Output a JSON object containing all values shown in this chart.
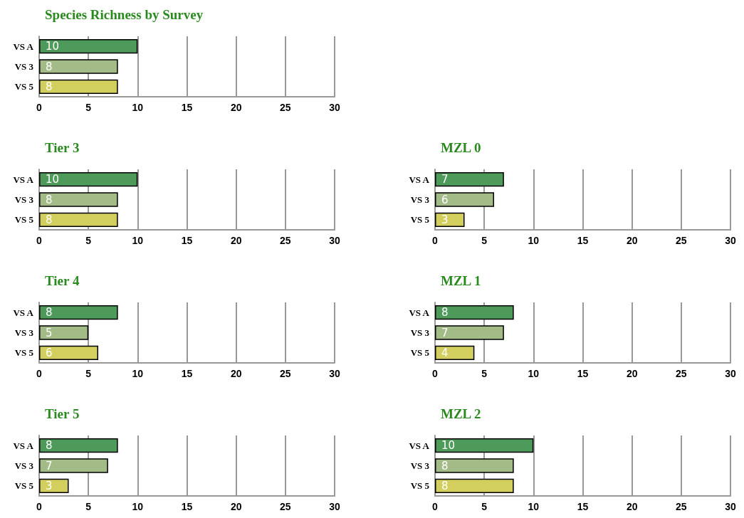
{
  "chart_data": [
    {
      "type": "bar",
      "orientation": "horizontal",
      "title": "Species Richness by Survey",
      "categories": [
        "VS A",
        "VS 3",
        "VS 5"
      ],
      "values": [
        10,
        8,
        8
      ],
      "colors": [
        "#4e9a5a",
        "#a3bb86",
        "#d2cf5e"
      ],
      "xlim": [
        0,
        30
      ],
      "xticks": [
        0,
        5,
        10,
        15,
        20,
        25,
        30
      ],
      "grid": "x",
      "data_labels": true
    },
    {
      "type": "bar",
      "orientation": "horizontal",
      "title": "Tier 3",
      "categories": [
        "VS A",
        "VS 3",
        "VS 5"
      ],
      "values": [
        10,
        8,
        8
      ],
      "colors": [
        "#4e9a5a",
        "#a3bb86",
        "#d2cf5e"
      ],
      "xlim": [
        0,
        30
      ],
      "xticks": [
        0,
        5,
        10,
        15,
        20,
        25,
        30
      ],
      "grid": "x",
      "data_labels": true
    },
    {
      "type": "bar",
      "orientation": "horizontal",
      "title": "MZL 0",
      "categories": [
        "VS A",
        "VS 3",
        "VS 5"
      ],
      "values": [
        7,
        6,
        3
      ],
      "colors": [
        "#4e9a5a",
        "#a3bb86",
        "#d2cf5e"
      ],
      "xlim": [
        0,
        30
      ],
      "xticks": [
        0,
        5,
        10,
        15,
        20,
        25,
        30
      ],
      "grid": "x",
      "data_labels": true
    },
    {
      "type": "bar",
      "orientation": "horizontal",
      "title": "Tier 4",
      "categories": [
        "VS A",
        "VS 3",
        "VS 5"
      ],
      "values": [
        8,
        5,
        6
      ],
      "colors": [
        "#4e9a5a",
        "#a3bb86",
        "#d2cf5e"
      ],
      "xlim": [
        0,
        30
      ],
      "xticks": [
        0,
        5,
        10,
        15,
        20,
        25,
        30
      ],
      "grid": "x",
      "data_labels": true
    },
    {
      "type": "bar",
      "orientation": "horizontal",
      "title": "MZL 1",
      "categories": [
        "VS A",
        "VS 3",
        "VS 5"
      ],
      "values": [
        8,
        7,
        4
      ],
      "colors": [
        "#4e9a5a",
        "#a3bb86",
        "#d2cf5e"
      ],
      "xlim": [
        0,
        30
      ],
      "xticks": [
        0,
        5,
        10,
        15,
        20,
        25,
        30
      ],
      "grid": "x",
      "data_labels": true
    },
    {
      "type": "bar",
      "orientation": "horizontal",
      "title": "Tier 5",
      "categories": [
        "VS A",
        "VS 3",
        "VS 5"
      ],
      "values": [
        8,
        7,
        3
      ],
      "colors": [
        "#4e9a5a",
        "#a3bb86",
        "#d2cf5e"
      ],
      "xlim": [
        0,
        30
      ],
      "xticks": [
        0,
        5,
        10,
        15,
        20,
        25,
        30
      ],
      "grid": "x",
      "data_labels": true
    },
    {
      "type": "bar",
      "orientation": "horizontal",
      "title": "MZL 2",
      "categories": [
        "VS A",
        "VS 3",
        "VS 5"
      ],
      "values": [
        10,
        8,
        8
      ],
      "colors": [
        "#4e9a5a",
        "#a3bb86",
        "#d2cf5e"
      ],
      "xlim": [
        0,
        30
      ],
      "xticks": [
        0,
        5,
        10,
        15,
        20,
        25,
        30
      ],
      "grid": "x",
      "data_labels": true
    }
  ]
}
